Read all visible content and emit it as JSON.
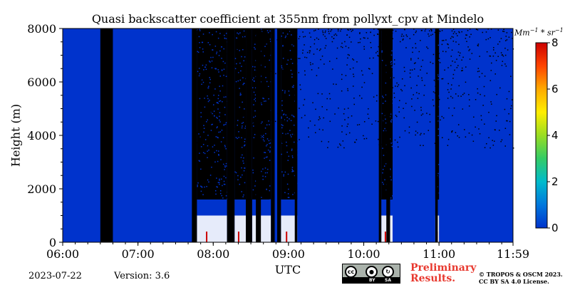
{
  "chart_data": {
    "type": "heatmap",
    "title": "Quasi backscatter coefficient at 355nm from pollyxt_cpv at Mindelo",
    "xlabel": "UTC",
    "ylabel": "Height (m)",
    "x_ticks": [
      "06:00",
      "07:00",
      "08:00",
      "09:00",
      "10:00",
      "11:00",
      "11:59"
    ],
    "x_range_hours": [
      6.0,
      11.983
    ],
    "ylim": [
      0,
      8000
    ],
    "y_ticks": [
      0,
      2000,
      4000,
      6000,
      8000
    ],
    "colorbar": {
      "min": 0,
      "max": 8,
      "ticks": [
        0,
        2,
        4,
        6,
        8
      ],
      "unit_base": "Mm",
      "unit_exp1": "−1",
      "unit_mid": " * sr",
      "unit_exp2": "−1",
      "colormap": [
        "#0033cc",
        "#0077dd",
        "#00bbcc",
        "#33cc66",
        "#99dd22",
        "#ffee00",
        "#ffaa00",
        "#ff4400",
        "#cc0000"
      ]
    },
    "background_value": 0.4,
    "no_data_periods_utc": [
      [
        "06:30",
        "06:40"
      ],
      [
        "07:43",
        "07:47"
      ],
      [
        "08:11",
        "08:17"
      ],
      [
        "08:26",
        "08:31"
      ],
      [
        "08:34",
        "08:38"
      ],
      [
        "08:46",
        "08:49"
      ],
      [
        "08:51",
        "08:54"
      ],
      [
        "09:05",
        "09:07"
      ],
      [
        "10:12",
        "10:14"
      ],
      [
        "10:18",
        "10:21"
      ],
      [
        "10:57",
        "10:59"
      ]
    ],
    "cloud_screened_periods_utc": [
      [
        "07:47",
        "08:11"
      ],
      [
        "08:17",
        "08:26"
      ],
      [
        "08:31",
        "08:46"
      ],
      [
        "08:54",
        "09:07"
      ],
      [
        "10:14",
        "10:23"
      ],
      [
        "10:57",
        "11:00"
      ]
    ],
    "near_surface_max_height_m": 1000,
    "near_surface_peak_value": 8
  },
  "footer": {
    "date": "2023-07-22",
    "version": "Version: 3.6",
    "preliminary_line1": "Preliminary",
    "preliminary_line2": "Results.",
    "copyright_line1": "© TROPOS & OSCM 2023.",
    "copyright_line2": "CC BY SA 4.0 License.",
    "license_badge": {
      "icon1": "cc",
      "icon2": "by-icon",
      "icon3": "sa-icon",
      "label1": "BY",
      "label2": "SA"
    }
  }
}
